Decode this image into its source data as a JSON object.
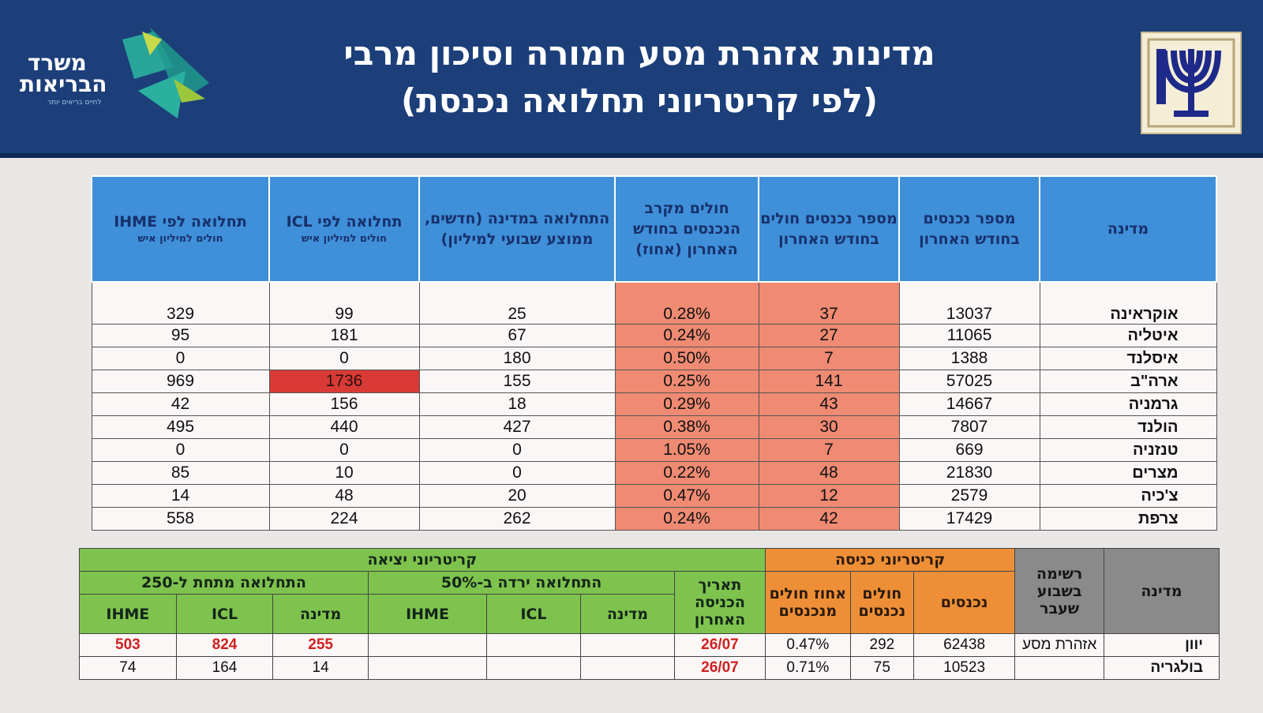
{
  "header": {
    "title_line1": "מדינות אזהרת מסע חמורה וסיכון מרבי",
    "title_line2": "(לפי קריטריוני תחלואה נכנסת)",
    "logo_line1": "משרד",
    "logo_line2": "הבריאות",
    "logo_tagline": "לחיים בריאים יותר",
    "colors": {
      "banner": "#1c3f7a",
      "accent_green": "#7ec34d",
      "accent_teal": "#2aa59a"
    }
  },
  "main_table": {
    "headers": [
      {
        "main": "מדינה",
        "sub": ""
      },
      {
        "main": "מספר נכנסים בחודש האחרון",
        "sub": ""
      },
      {
        "main": "מספר נכנסים חולים בחודש האחרון",
        "sub": ""
      },
      {
        "main": "חולים מקרב הנכנסים בחודש האחרון (אחוז)",
        "sub": ""
      },
      {
        "main": "התחלואה במדינה (חדשים, ממוצע שבועי למיליון)",
        "sub": ""
      },
      {
        "main": "תחלואה לפי ICL",
        "sub": "חולים למיליון איש"
      },
      {
        "main": "תחלואה לפי IHME",
        "sub": "חולים למיליון איש"
      }
    ],
    "rows": [
      {
        "country": "אוקראינה",
        "entrants": "13037",
        "sick": "37",
        "pct": "0.28%",
        "morbidity": "25",
        "icl": "99",
        "ihme": "329"
      },
      {
        "country": "איטליה",
        "entrants": "11065",
        "sick": "27",
        "pct": "0.24%",
        "morbidity": "67",
        "icl": "181",
        "ihme": "95"
      },
      {
        "country": "איסלנד",
        "entrants": "1388",
        "sick": "7",
        "pct": "0.50%",
        "morbidity": "180",
        "icl": "0",
        "ihme": "0"
      },
      {
        "country": "ארה\"ב",
        "entrants": "57025",
        "sick": "141",
        "pct": "0.25%",
        "morbidity": "155",
        "icl": "1736",
        "ihme": "969"
      },
      {
        "country": "גרמניה",
        "entrants": "14667",
        "sick": "43",
        "pct": "0.29%",
        "morbidity": "18",
        "icl": "156",
        "ihme": "42"
      },
      {
        "country": "הולנד",
        "entrants": "7807",
        "sick": "30",
        "pct": "0.38%",
        "morbidity": "427",
        "icl": "440",
        "ihme": "495"
      },
      {
        "country": "טנזניה",
        "entrants": "669",
        "sick": "7",
        "pct": "1.05%",
        "morbidity": "0",
        "icl": "0",
        "ihme": "0"
      },
      {
        "country": "מצרים",
        "entrants": "21830",
        "sick": "48",
        "pct": "0.22%",
        "morbidity": "0",
        "icl": "10",
        "ihme": "85"
      },
      {
        "country": "צ'כיה",
        "entrants": "2579",
        "sick": "12",
        "pct": "0.47%",
        "morbidity": "20",
        "icl": "48",
        "ihme": "14"
      },
      {
        "country": "צרפת",
        "entrants": "17429",
        "sick": "42",
        "pct": "0.24%",
        "morbidity": "262",
        "icl": "224",
        "ihme": "558"
      }
    ]
  },
  "criteria_table": {
    "country_header": "מדינה",
    "list_header": "רשימה בשבוע שעבר",
    "entry_header": "קריטריוני כניסה",
    "entry_cols": [
      "נכנסים",
      "חולים נכנסים",
      "אחוז חולים מנכנסים"
    ],
    "last_entry_header": "תאריך הכניסה האחרון",
    "exit_header": "קריטריוני יציאה",
    "drop_header": "התחלואה ירדה ב-50%",
    "below_header": "התחלואה מתחת ל-250",
    "sub_cols": [
      "מדינה",
      "ICL",
      "IHME"
    ],
    "rows": [
      {
        "country": "יוון",
        "list": "אזהרת מסע",
        "entrants": "62438",
        "sick": "292",
        "pct": "0.47%",
        "date": "26/07",
        "drop_country": "",
        "drop_icl": "",
        "drop_ihme": "",
        "below_country": "255",
        "below_icl": "824",
        "below_ihme": "503"
      },
      {
        "country": "בולגריה",
        "list": "",
        "entrants": "10523",
        "sick": "75",
        "pct": "0.71%",
        "date": "26/07",
        "drop_country": "",
        "drop_icl": "",
        "drop_ihme": "",
        "below_country": "14",
        "below_icl": "164",
        "below_ihme": "74"
      }
    ]
  }
}
